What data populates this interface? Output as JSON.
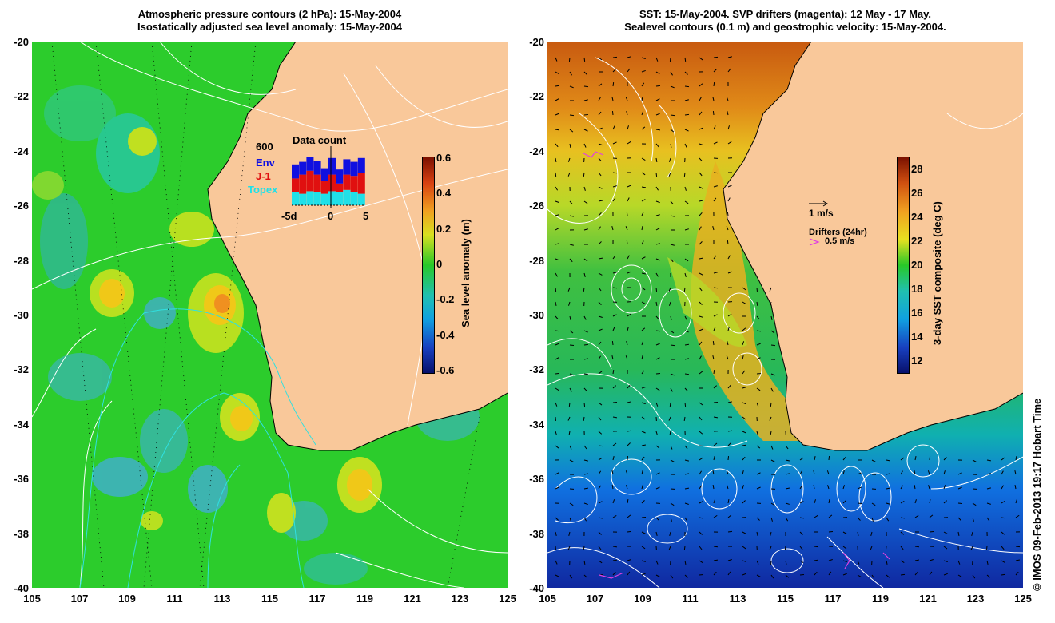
{
  "left_panel": {
    "title_line1": "Atmospheric pressure contours (2 hPa): 15-May-2004",
    "title_line2": "Isostatically adjusted sea level anomaly: 15-May-2004",
    "inset": {
      "title": "Data count",
      "max_label": "600",
      "legend": [
        "Env",
        "J-1",
        "Topex"
      ],
      "x_ticks": [
        "-5d",
        "0",
        "5"
      ],
      "colors": {
        "env": "#1010e0",
        "j1": "#e01010",
        "topex": "#20e0e8"
      }
    },
    "colorbar": {
      "title": "Sea level anomaly (m)",
      "ticks": [
        "0.6",
        "0.4",
        "0.2",
        "0",
        "-0.2",
        "-0.4",
        "-0.6"
      ]
    }
  },
  "right_panel": {
    "title_line1": "SST: 15-May-2004. SVP drifters (magenta): 12 May - 17 May.",
    "title_line2": "Sealevel contours (0.1 m) and geostrophic velocity: 15-May-2004.",
    "velocity_scale_label": "1 m/s",
    "drifters_label": "Drifters (24hr)",
    "drifter_speed_label": "0.5 m/s",
    "colorbar": {
      "title": "3-day SST composite (deg C)",
      "ticks": [
        "28",
        "26",
        "24",
        "22",
        "20",
        "18",
        "16",
        "14",
        "12"
      ]
    }
  },
  "axes": {
    "y_ticks": [
      "-20",
      "-22",
      "-24",
      "-26",
      "-28",
      "-30",
      "-32",
      "-34",
      "-36",
      "-38",
      "-40"
    ],
    "x_ticks": [
      "105",
      "107",
      "109",
      "111",
      "113",
      "115",
      "117",
      "119",
      "121",
      "123",
      "125"
    ]
  },
  "copyright": "© IMOS 09-Feb-2013 19:17 Hobart Time",
  "colors": {
    "land": "#f9c89a",
    "ocean_green": "#28d028"
  }
}
